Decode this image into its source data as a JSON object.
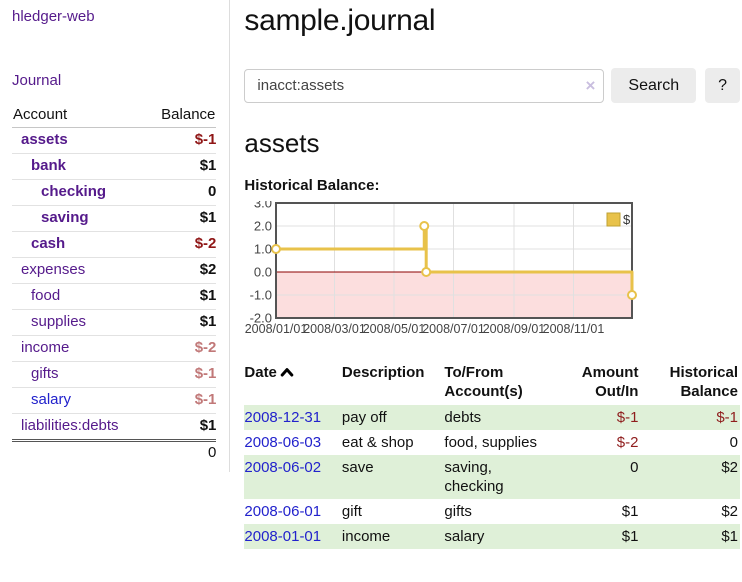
{
  "app": {
    "title": "hledger-web"
  },
  "sidebar": {
    "nav": {
      "journal": "Journal"
    },
    "headers": {
      "account": "Account",
      "balance": "Balance"
    },
    "accounts": [
      {
        "name": "assets",
        "balance": "$-1",
        "level": 0
      },
      {
        "name": "bank",
        "balance": "$1",
        "level": 1
      },
      {
        "name": "checking",
        "balance": "0",
        "level": 2
      },
      {
        "name": "saving",
        "balance": "$1",
        "level": 2
      },
      {
        "name": "cash",
        "balance": "$-2",
        "level": 1
      },
      {
        "name": "expenses",
        "balance": "$2",
        "level": 0
      },
      {
        "name": "food",
        "balance": "$1",
        "level": 1
      },
      {
        "name": "supplies",
        "balance": "$1",
        "level": 1
      },
      {
        "name": "income",
        "balance": "$-2",
        "level": 0
      },
      {
        "name": "gifts",
        "balance": "$-1",
        "level": 1
      },
      {
        "name": "salary",
        "balance": "$-1",
        "level": 1
      },
      {
        "name": "liabilities:debts",
        "balance": "$1",
        "level": 0
      }
    ],
    "total": "0"
  },
  "header": {
    "title": "sample.journal"
  },
  "search": {
    "value": "inacct:assets",
    "clear_icon": "×",
    "button_label": "Search",
    "help_label": "?"
  },
  "section": {
    "title": "assets"
  },
  "chart_data": {
    "type": "line",
    "step": true,
    "title": "Historical Balance:",
    "legend": "$",
    "legend_position": "top-right",
    "series": [
      {
        "name": "$",
        "color": "#e8c24a",
        "points": [
          [
            "2008-01-01",
            1
          ],
          [
            "2008-06-01",
            2
          ],
          [
            "2008-06-03",
            0
          ],
          [
            "2008-12-31",
            -1
          ]
        ]
      }
    ],
    "ylim": [
      -2,
      3
    ],
    "x_start": "2008-01-01",
    "x_end": "2008-12-31",
    "yticks": [
      "3.0",
      "2.0",
      "1.0",
      "0.0",
      "-1.0",
      "-2.0"
    ],
    "xticks": [
      "2008/01/01",
      "2008/03/01",
      "2008/05/01",
      "2008/07/01",
      "2008/09/01",
      "2008/11/01"
    ],
    "grid": true,
    "negative_region_color": "#fcdede",
    "zero_line_color": "#8b0000",
    "border_color": "#545454",
    "grid_color": "#e0e0e0"
  },
  "register": {
    "headers": {
      "date": "Date",
      "description": "Description",
      "accounts": "To/From Account(s)",
      "amount": "Amount Out/In",
      "balance": "Historical Balance"
    },
    "rows": [
      {
        "date": "2008-12-31",
        "description": "pay off",
        "accounts": "debts",
        "amount": "$-1",
        "balance": "$-1"
      },
      {
        "date": "2008-06-03",
        "description": "eat & shop",
        "accounts": "food, supplies",
        "amount": "$-2",
        "balance": "0"
      },
      {
        "date": "2008-06-02",
        "description": "save",
        "accounts": "saving, checking",
        "amount": "0",
        "balance": "$2"
      },
      {
        "date": "2008-06-01",
        "description": "gift",
        "accounts": "gifts",
        "amount": "$1",
        "balance": "$2"
      },
      {
        "date": "2008-01-01",
        "description": "income",
        "accounts": "salary",
        "amount": "$1",
        "balance": "$1"
      }
    ]
  }
}
